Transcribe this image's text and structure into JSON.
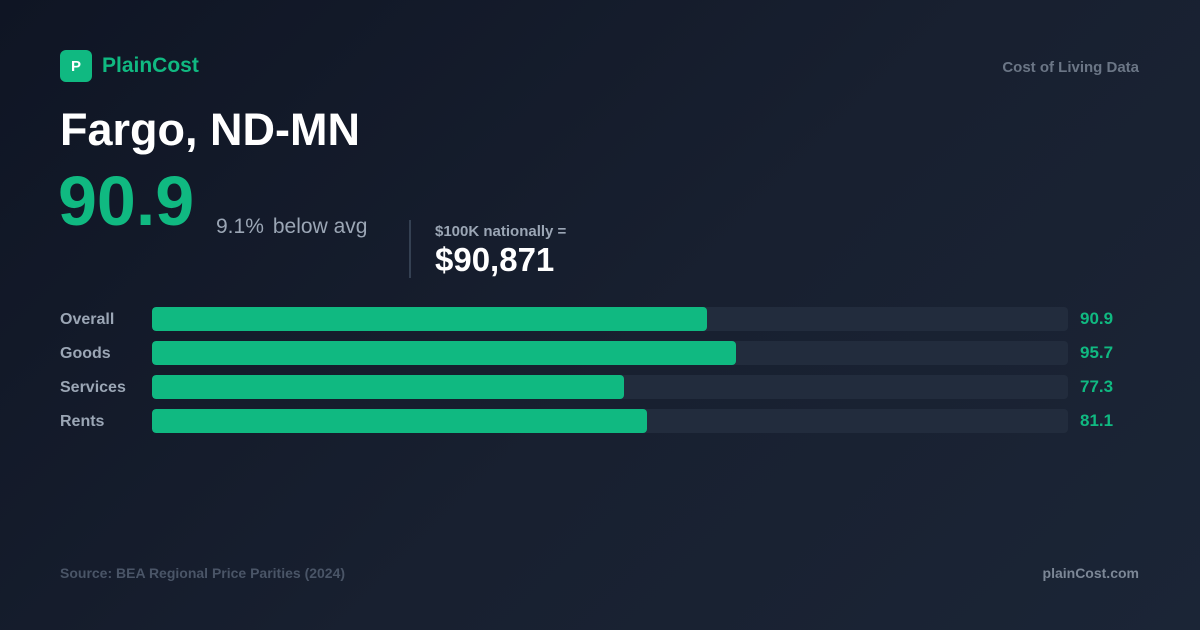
{
  "brand": {
    "logo_letter": "P",
    "name": "PlainCost",
    "accent": "#10b981"
  },
  "tagline": "Cost of Living Data",
  "city": "Fargo, ND-MN",
  "index": {
    "value": "90.9",
    "diff_pct": "9.1%",
    "diff_text": "below avg"
  },
  "equivalent": {
    "label": "$100K nationally =",
    "value": "$90,871"
  },
  "chart_data": {
    "type": "bar",
    "orientation": "horizontal",
    "categories": [
      "Overall",
      "Goods",
      "Services",
      "Rents"
    ],
    "values": [
      90.9,
      95.7,
      77.3,
      81.1
    ],
    "value_labels": [
      "90.9",
      "95.7",
      "77.3",
      "81.1"
    ],
    "xlim": [
      0,
      150
    ],
    "grid": false
  },
  "footer": {
    "source": "Source: BEA Regional Price Parities (2024)",
    "site": "plainCost.com"
  }
}
